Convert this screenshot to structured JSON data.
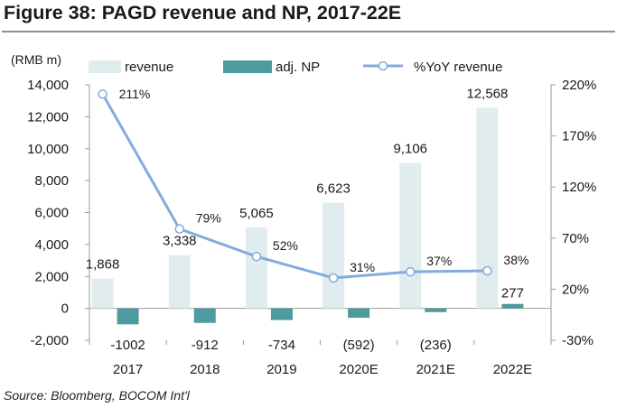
{
  "title": "Figure 38: PAGD revenue and NP, 2017-22E",
  "source": "Source: Bloomberg, BOCOM Int'l",
  "colors": {
    "revenue": "#e1ecef",
    "np": "#4e9a9e",
    "yoy": "#84aade",
    "rule": "#8f8f8f",
    "axis": "#9a9a9a"
  },
  "chart_data": {
    "type": "bar",
    "categories": [
      "2017",
      "2018",
      "2019",
      "2020E",
      "2021E",
      "2022E"
    ],
    "series": [
      {
        "name": "revenue",
        "type": "bar",
        "axis": "left",
        "values": [
          1868,
          3338,
          5065,
          6623,
          9106,
          12568
        ],
        "labels": [
          "1,868",
          "3,338",
          "5,065",
          "6,623",
          "9,106",
          "12,568"
        ]
      },
      {
        "name": "adj. NP",
        "type": "bar",
        "axis": "left",
        "values": [
          -1002,
          -912,
          -734,
          -592,
          -236,
          277
        ],
        "labels": [
          "-1002",
          "-912",
          "-734",
          "(592)",
          "(236)",
          "277"
        ]
      },
      {
        "name": "%YoY revenue",
        "type": "line",
        "axis": "right",
        "values": [
          211,
          79,
          52,
          31,
          37,
          38
        ],
        "labels": [
          "211%",
          "79%",
          "52%",
          "31%",
          "37%",
          "38%"
        ]
      }
    ],
    "ylabel": "(RMB m)",
    "ylim": [
      -2000,
      14000
    ],
    "yticks": [
      -2000,
      0,
      2000,
      4000,
      6000,
      8000,
      10000,
      12000,
      14000
    ],
    "ytick_labels": [
      "-2,000",
      "0",
      "2,000",
      "4,000",
      "6,000",
      "8,000",
      "10,000",
      "12,000",
      "14,000"
    ],
    "y2lim": [
      -30,
      220
    ],
    "y2ticks": [
      -30,
      20,
      70,
      120,
      170,
      220
    ],
    "y2tick_labels": [
      "-30%",
      "20%",
      "70%",
      "120%",
      "170%",
      "220%"
    ],
    "legend": [
      "revenue",
      "adj. NP",
      "%YoY revenue"
    ],
    "legend_position": "top",
    "grid": false
  }
}
